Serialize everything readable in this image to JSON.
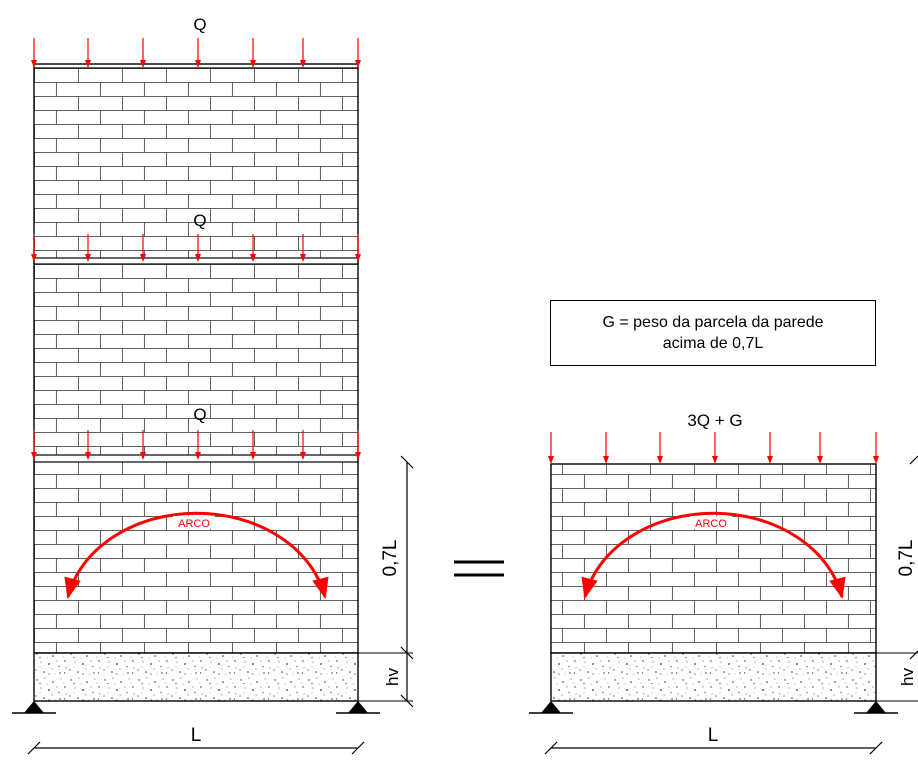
{
  "diagram": {
    "left_load_labels": [
      "Q",
      "Q",
      "Q"
    ],
    "right_load_label": "3Q + G",
    "arch_label": "ARCO",
    "height_label": "0,7L",
    "lintel_label": "hv",
    "span_label": "L",
    "note": {
      "line1": "G = peso da parcela da parede",
      "line2": "acima de 0,7L"
    },
    "colors": {
      "load_arrows": "#ff0000",
      "arch": "#ff0000",
      "lines": "#000000"
    }
  }
}
